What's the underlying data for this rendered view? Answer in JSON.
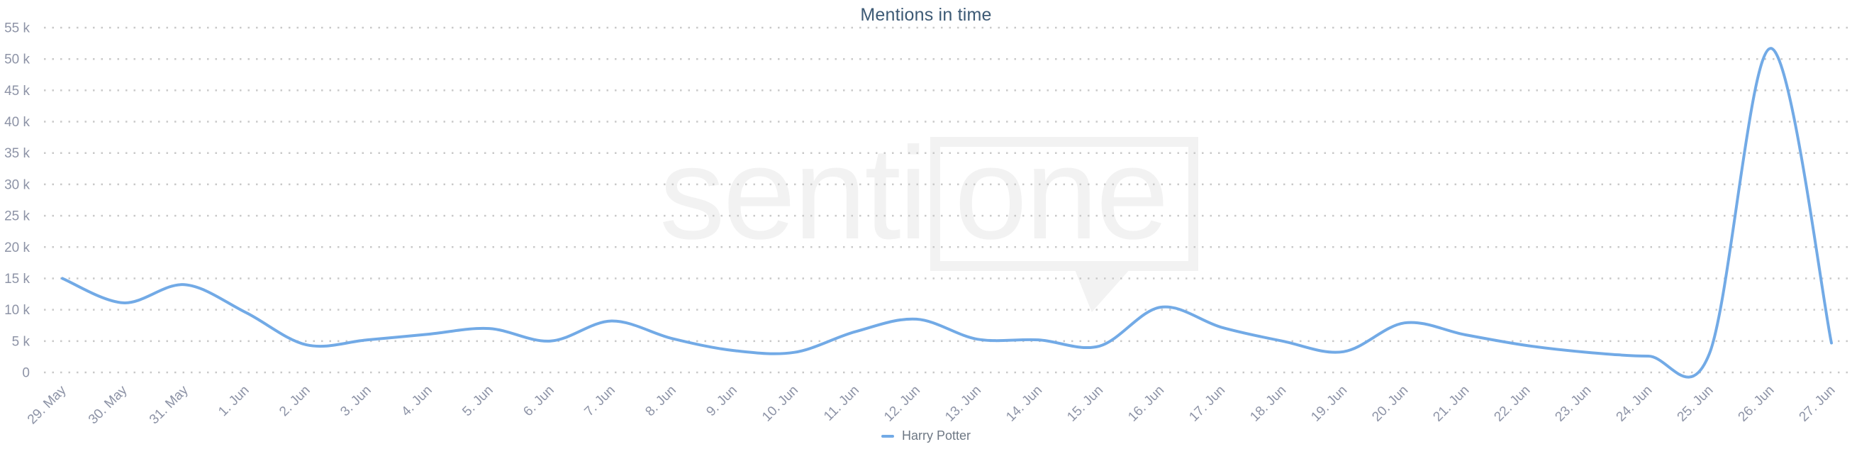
{
  "title": "Mentions in time",
  "legend": {
    "label": "Harry Potter"
  },
  "watermark": {
    "prefix": "senti",
    "boxed": "one"
  },
  "colors": {
    "series": "#72aae6",
    "title": "#3d5a75",
    "axis_label": "#8d93a6",
    "grid_dots": "#c9c9c9",
    "legend_text": "#6e7884",
    "watermark": "#f2f2f2"
  },
  "y_axis": {
    "tick_labels": [
      "0",
      "5 k",
      "10 k",
      "15 k",
      "20 k",
      "25 k",
      "30 k",
      "35 k",
      "40 k",
      "45 k",
      "50 k",
      "55 k"
    ],
    "tick_values": [
      0,
      5000,
      10000,
      15000,
      20000,
      25000,
      30000,
      35000,
      40000,
      45000,
      50000,
      55000
    ]
  },
  "chart_data": {
    "type": "line",
    "title": "Mentions in time",
    "xlabel": "",
    "ylabel": "",
    "ylim": [
      0,
      55000
    ],
    "grid": "dotted-horizontal",
    "legend_position": "bottom-center",
    "curve": "smooth-spline",
    "categories": [
      "29. May",
      "30. May",
      "31. May",
      "1. Jun",
      "2. Jun",
      "3. Jun",
      "4. Jun",
      "5. Jun",
      "6. Jun",
      "7. Jun",
      "8. Jun",
      "9. Jun",
      "10. Jun",
      "11. Jun",
      "12. Jun",
      "13. Jun",
      "14. Jun",
      "15. Jun",
      "16. Jun",
      "17. Jun",
      "18. Jun",
      "19. Jun",
      "20. Jun",
      "21. Jun",
      "22. Jun",
      "23. Jun",
      "24. Jun",
      "25. Jun",
      "26. Jun",
      "27. Jun"
    ],
    "series": [
      {
        "name": "Harry Potter",
        "color": "#72aae6",
        "values": [
          15000,
          11100,
          14000,
          9600,
          4400,
          5200,
          6100,
          7000,
          5000,
          8200,
          5400,
          3500,
          3200,
          6500,
          8500,
          5300,
          5200,
          4200,
          10400,
          7200,
          5000,
          3300,
          7900,
          6000,
          4300,
          3200,
          2600,
          3000,
          51700,
          4700
        ]
      }
    ]
  }
}
